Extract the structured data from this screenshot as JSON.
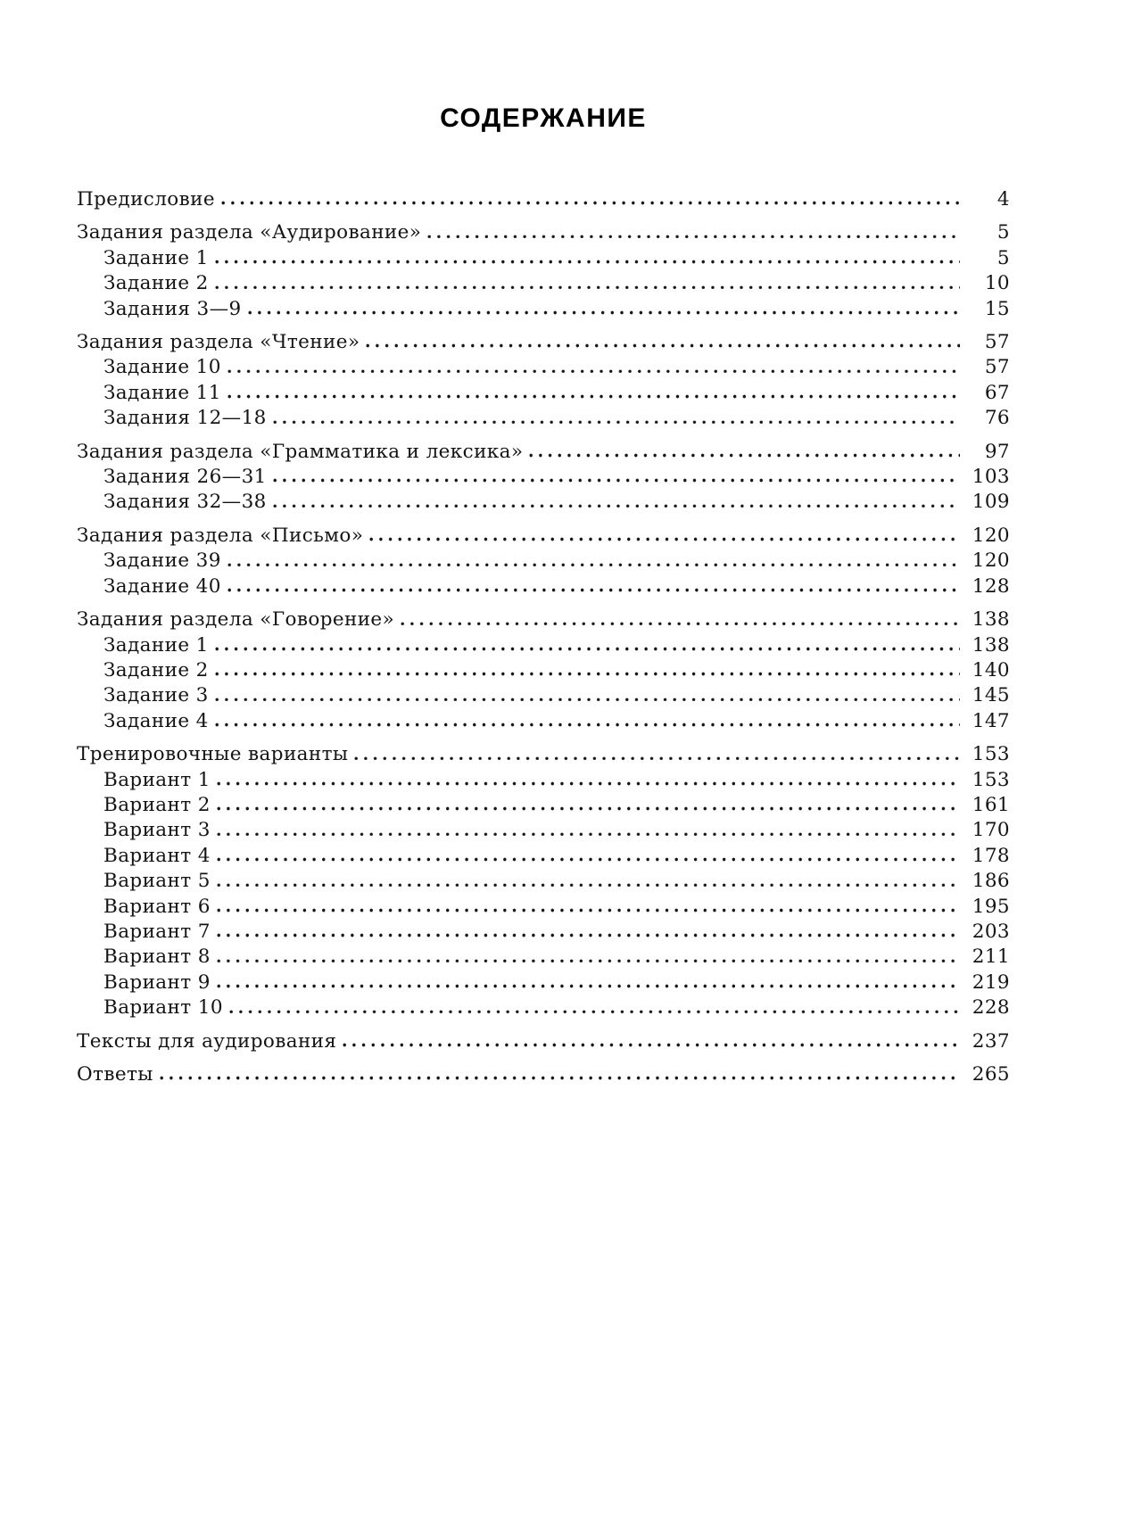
{
  "page": {
    "title": "СОДЕРЖАНИЕ"
  },
  "toc": {
    "entries": [
      {
        "label": "Предисловие",
        "page": "4",
        "level": 0
      },
      {
        "label": "Задания раздела «Аудирование»",
        "page": "5",
        "level": 0
      },
      {
        "label": "Задание 1",
        "page": "5",
        "level": 1
      },
      {
        "label": "Задание 2",
        "page": "10",
        "level": 1
      },
      {
        "label": "Задания 3—9",
        "page": "15",
        "level": 1
      },
      {
        "label": "Задания раздела «Чтение»",
        "page": "57",
        "level": 0
      },
      {
        "label": "Задание 10",
        "page": "57",
        "level": 1
      },
      {
        "label": "Задание 11",
        "page": "67",
        "level": 1
      },
      {
        "label": "Задания 12—18",
        "page": "76",
        "level": 1
      },
      {
        "label": "Задания раздела «Грамматика и лексика»",
        "page": "97",
        "level": 0
      },
      {
        "label": "Задания 26—31",
        "page": "103",
        "level": 1
      },
      {
        "label": "Задания 32—38",
        "page": "109",
        "level": 1
      },
      {
        "label": "Задания раздела «Письмо»",
        "page": "120",
        "level": 0
      },
      {
        "label": "Задание 39",
        "page": "120",
        "level": 1
      },
      {
        "label": "Задание 40",
        "page": "128",
        "level": 1
      },
      {
        "label": "Задания раздела «Говорение»",
        "page": "138",
        "level": 0
      },
      {
        "label": "Задание 1",
        "page": "138",
        "level": 1
      },
      {
        "label": "Задание 2",
        "page": "140",
        "level": 1
      },
      {
        "label": "Задание 3",
        "page": "145",
        "level": 1
      },
      {
        "label": "Задание 4",
        "page": "147",
        "level": 1
      },
      {
        "label": "Тренировочные варианты",
        "page": "153",
        "level": 0
      },
      {
        "label": "Вариант 1",
        "page": "153",
        "level": 1
      },
      {
        "label": "Вариант 2",
        "page": "161",
        "level": 1
      },
      {
        "label": "Вариант 3",
        "page": "170",
        "level": 1
      },
      {
        "label": "Вариант 4",
        "page": "178",
        "level": 1
      },
      {
        "label": "Вариант 5",
        "page": "186",
        "level": 1
      },
      {
        "label": "Вариант 6",
        "page": "195",
        "level": 1
      },
      {
        "label": "Вариант 7",
        "page": "203",
        "level": 1
      },
      {
        "label": "Вариант 8",
        "page": "211",
        "level": 1
      },
      {
        "label": "Вариант 9",
        "page": "219",
        "level": 1
      },
      {
        "label": "Вариант 10",
        "page": "228",
        "level": 1
      },
      {
        "label": "Тексты для аудирования",
        "page": "237",
        "level": 0
      },
      {
        "label": "Ответы",
        "page": "265",
        "level": 0
      }
    ]
  }
}
